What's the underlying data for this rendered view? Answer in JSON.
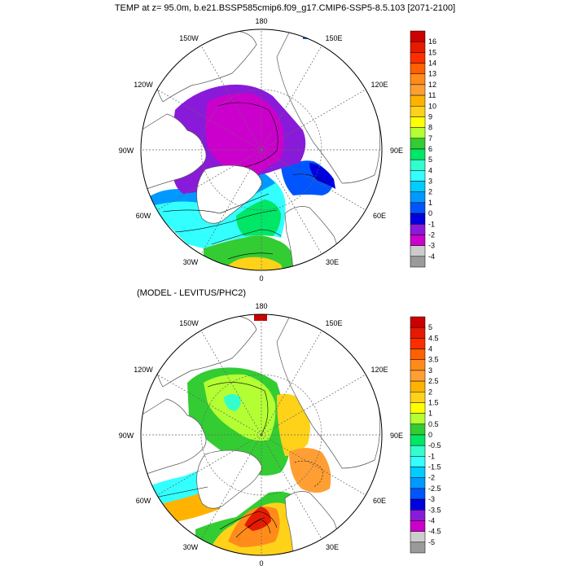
{
  "title": "TEMP at z=  95.0m, b.e21.BSSP585cmip6.f09_g17.CMIP6-SSP5-8.5.103 [2071-2100]",
  "subtitle": "(MODEL - LEVITUS/PHC2)",
  "longitude_labels": {
    "lon180": "180",
    "lon150w": "150W",
    "lon150e": "150E",
    "lon120w": "120W",
    "lon120e": "120E",
    "lon90w": "90W",
    "lon90e": "90E",
    "lon60w": "60W",
    "lon60e": "60E",
    "lon30w": "30W",
    "lon30e": "30E",
    "lon0": "0"
  },
  "colorbar_top": {
    "labels": [
      "16",
      "15",
      "14",
      "13",
      "12",
      "11",
      "10",
      "9",
      "8",
      "7",
      "6",
      "5",
      "4",
      "3",
      "2",
      "1",
      "0",
      "-1",
      "-2",
      "-3",
      "-4"
    ],
    "colors": [
      "#cc0000",
      "#e51a00",
      "#ff2e00",
      "#ff6000",
      "#ff8c1a",
      "#ff9f33",
      "#ffb300",
      "#ffd21a",
      "#ffff00",
      "#b3ff33",
      "#33cc33",
      "#00e666",
      "#33ffcc",
      "#33ffff",
      "#00ccff",
      "#0099ff",
      "#0055ff",
      "#0000dd",
      "#8a1ad9",
      "#cc00cc",
      "#cccccc",
      "#9a9a9a"
    ]
  },
  "colorbar_bottom": {
    "labels": [
      "5",
      "4.5",
      "4",
      "3.5",
      "3",
      "2.5",
      "2",
      "1.5",
      "1",
      "0.5",
      "0",
      "-0.5",
      "-1",
      "-1.5",
      "-2",
      "-2.5",
      "-3",
      "-3.5",
      "-4",
      "-4.5",
      "-5"
    ],
    "colors": [
      "#cc0000",
      "#e51a00",
      "#ff2e00",
      "#ff6000",
      "#ff8c1a",
      "#ff9f33",
      "#ffb300",
      "#ffd21a",
      "#ffff00",
      "#b3ff33",
      "#33cc33",
      "#00e666",
      "#33ffcc",
      "#33ffff",
      "#00ccff",
      "#0099ff",
      "#0055ff",
      "#0000dd",
      "#8a1ad9",
      "#cc00cc",
      "#cccccc",
      "#9a9a9a"
    ]
  }
}
